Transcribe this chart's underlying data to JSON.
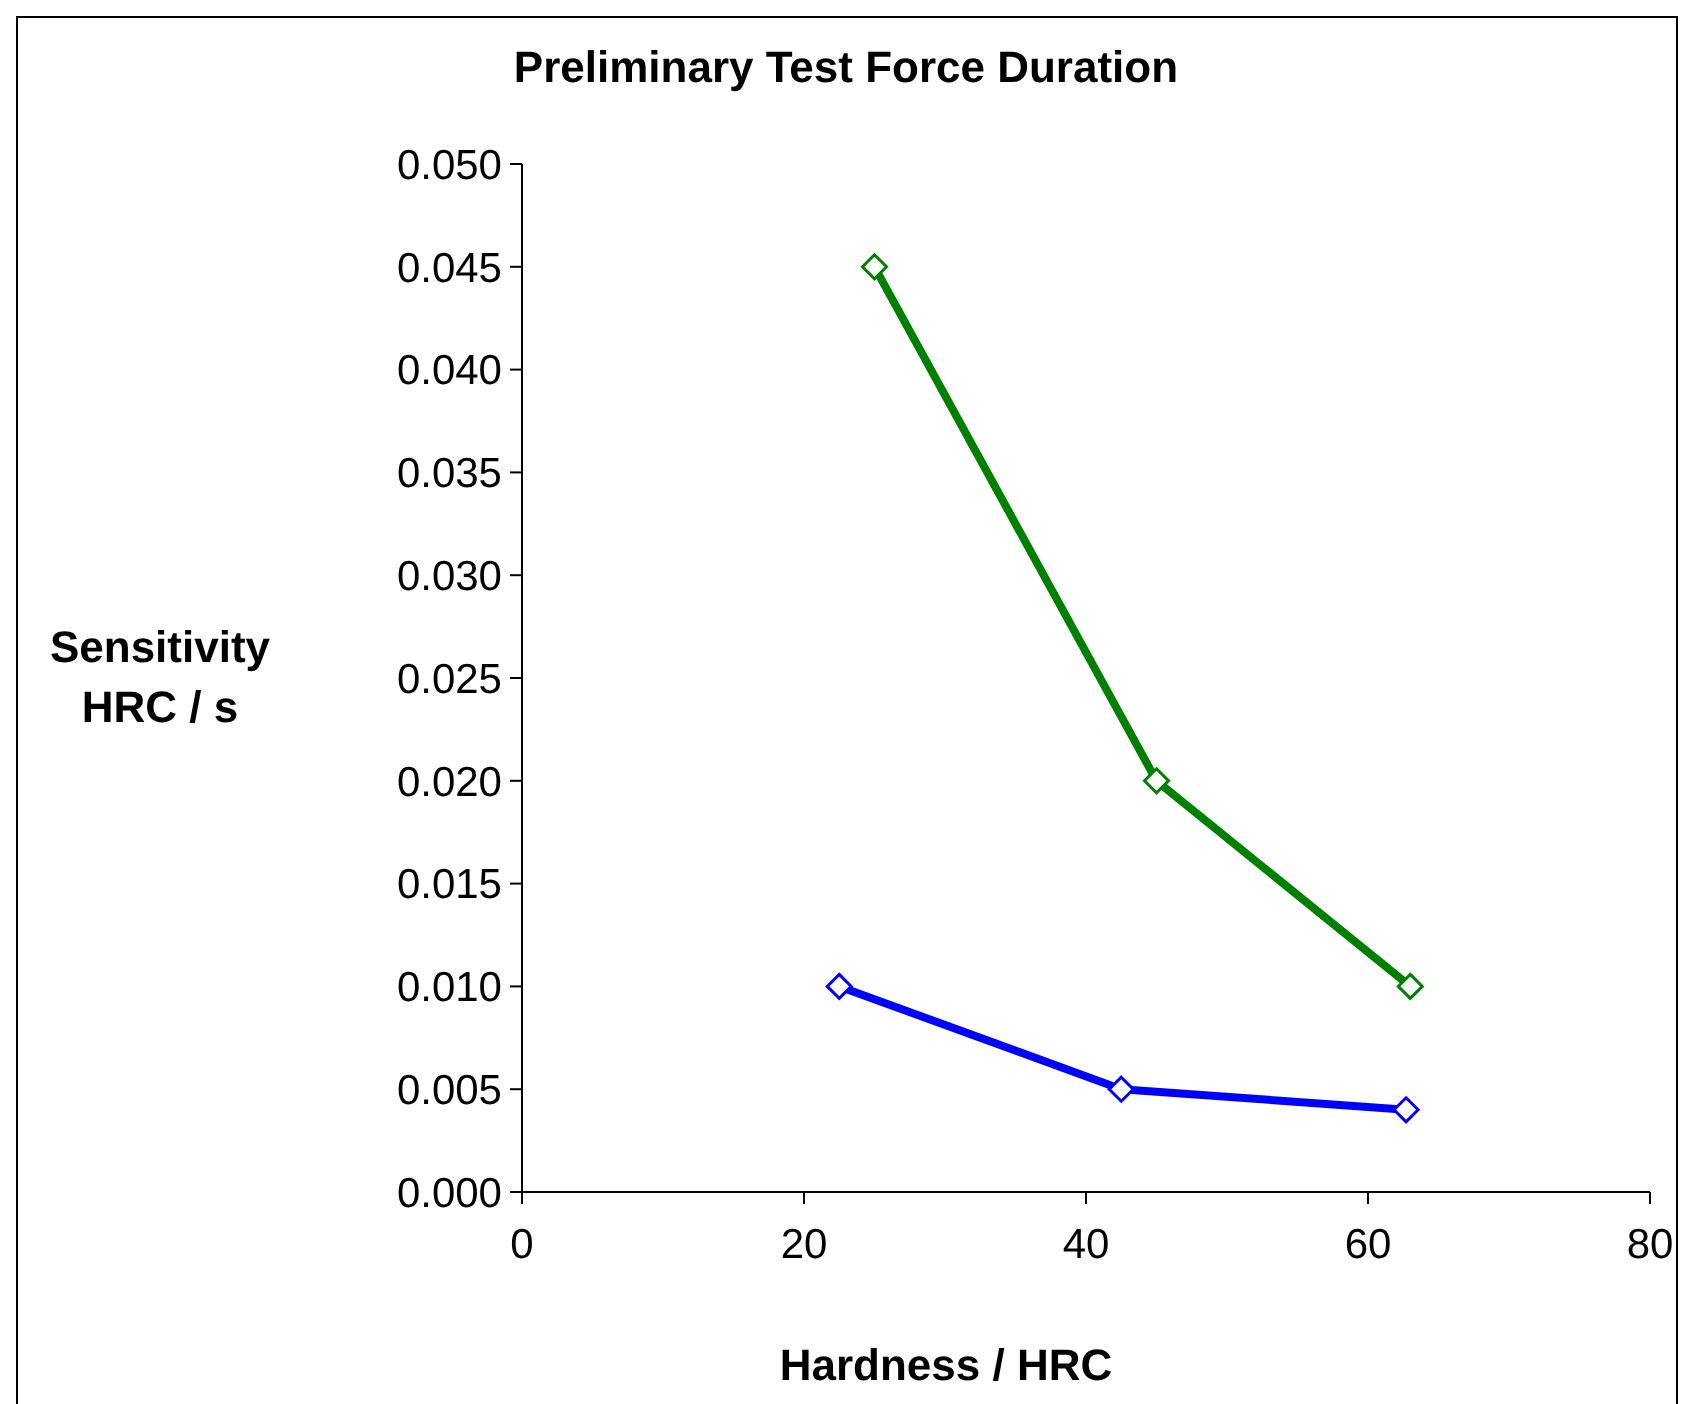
{
  "chart_data": {
    "type": "line",
    "title": "Preliminary Test Force Duration",
    "xlabel": "Hardness / HRC",
    "ylabel": "Sensitivity\nHRC / s",
    "xlim": [
      0,
      80
    ],
    "xticks": [
      0,
      20,
      40,
      60,
      80
    ],
    "ylim": [
      0,
      0.05
    ],
    "yticks": [
      {
        "value": 0,
        "label": "0.000"
      },
      {
        "value": 0.005,
        "label": "0.005"
      },
      {
        "value": 0.01,
        "label": "0.010"
      },
      {
        "value": 0.015,
        "label": "0.015"
      },
      {
        "value": 0.02,
        "label": "0.020"
      },
      {
        "value": 0.025,
        "label": "0.025"
      },
      {
        "value": 0.03,
        "label": "0.030"
      },
      {
        "value": 0.035,
        "label": "0.035"
      },
      {
        "value": 0.04,
        "label": "0.040"
      },
      {
        "value": 0.045,
        "label": "0.045"
      },
      {
        "value": 0.05,
        "label": "0.050"
      }
    ],
    "marker": "diamond",
    "line_style": "solid",
    "series": [
      {
        "color": "#008000",
        "x": [
          25,
          45,
          63
        ],
        "values": [
          0.045,
          0.02,
          0.01
        ]
      },
      {
        "color": "#0000ff",
        "x": [
          22.5,
          42.5,
          62.7
        ],
        "values": [
          0.01,
          0.005,
          0.004
        ]
      }
    ]
  }
}
